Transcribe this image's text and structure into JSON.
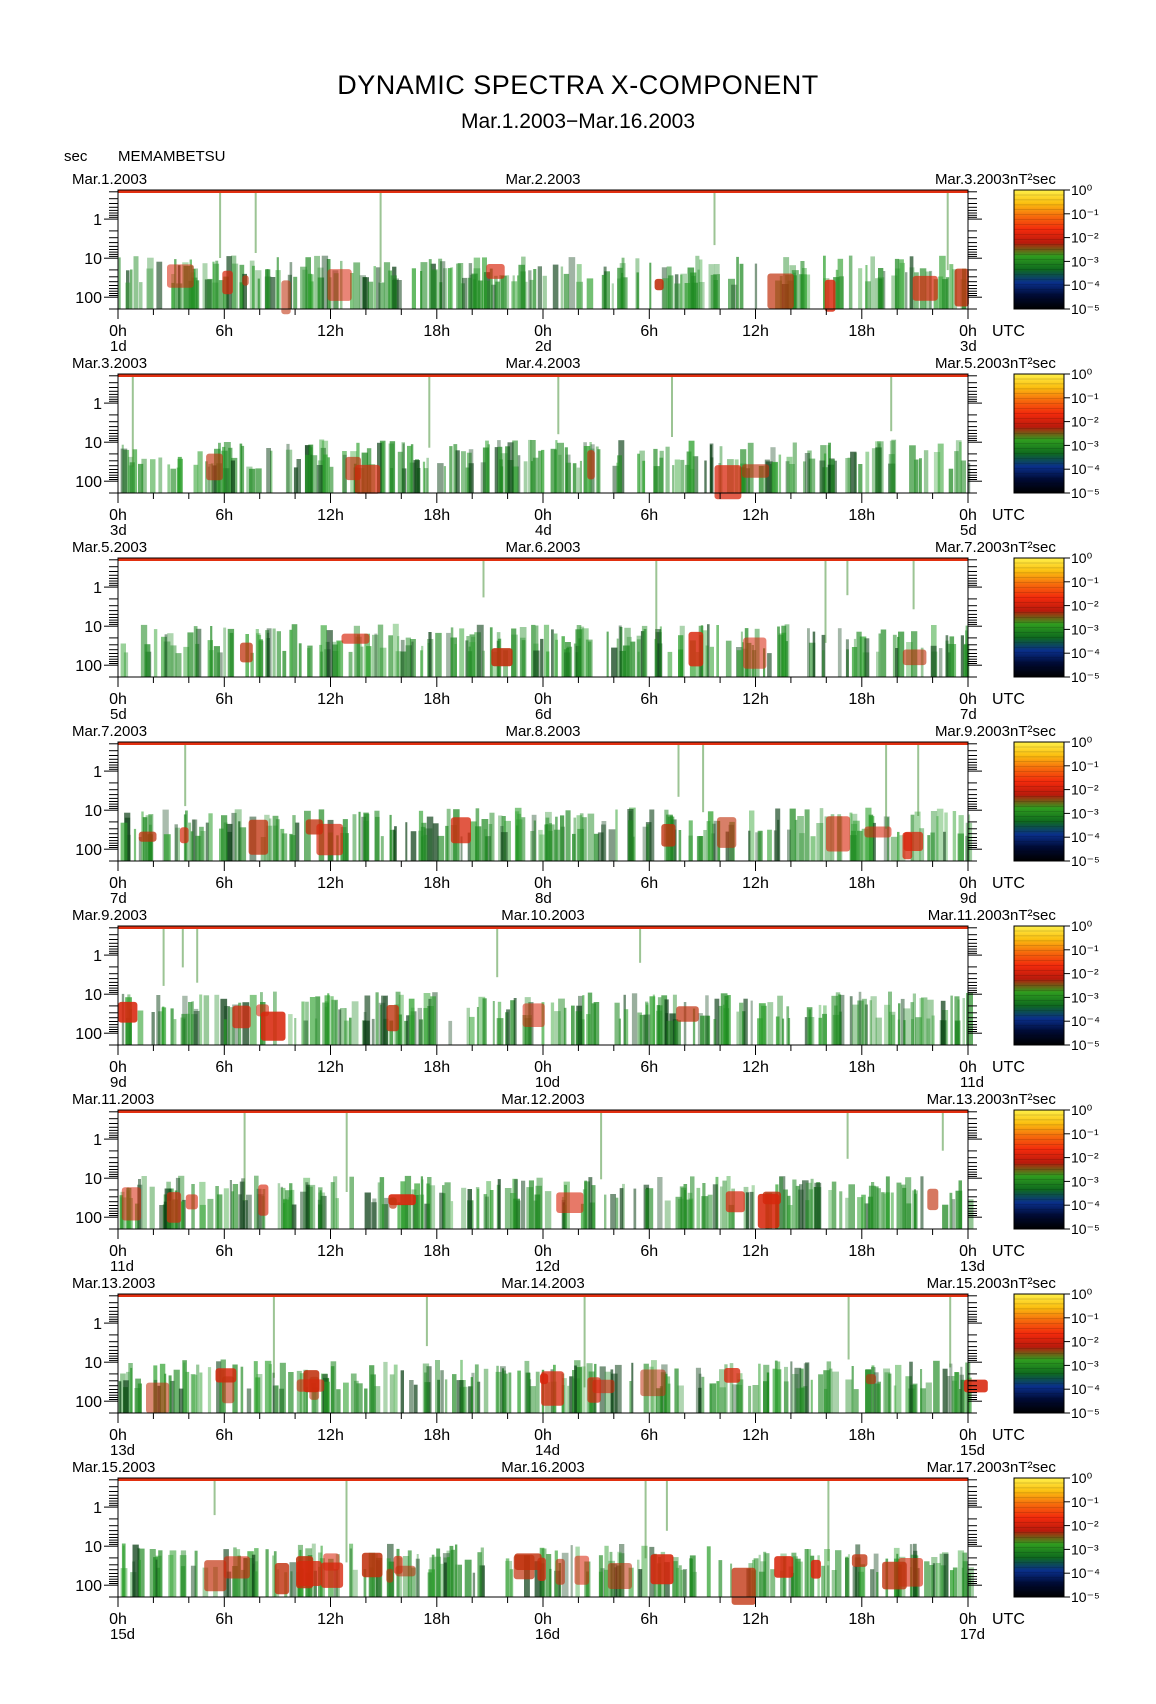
{
  "header": {
    "title": "DYNAMIC SPECTRA X-COMPONENT",
    "subtitle": "Mar.1.2003−Mar.16.2003",
    "y_unit": "sec",
    "station": "MEMAMBETSU"
  },
  "chart_data": {
    "type": "heatmap",
    "y_scale": "log",
    "y_unit": "sec",
    "y_ticks": [
      "1",
      "10",
      "100"
    ],
    "y_tick_values": [
      1,
      10,
      100
    ],
    "ylim": [
      0.18,
      200
    ],
    "x_ticks": [
      "0h",
      "6h",
      "12h",
      "18h",
      "0h",
      "6h",
      "12h",
      "18h",
      "0h"
    ],
    "x_tick_hours": [
      0,
      6,
      12,
      18,
      24,
      30,
      36,
      42,
      48
    ],
    "x_axis_unit": "UTC",
    "colorbar": {
      "unit": "nT²sec",
      "ticks": [
        "10⁰",
        "10⁻¹",
        "10⁻²",
        "10⁻³",
        "10⁻⁴",
        "10⁻⁵"
      ],
      "range": [
        1e-05,
        1
      ],
      "colors": [
        "#000000",
        "#000a33",
        "#0a2f8a",
        "#0f6a1e",
        "#2f9c1f",
        "#b81a0c",
        "#f22a0c",
        "#f66a0c",
        "#fbbf10",
        "#fff04a"
      ]
    },
    "panels": [
      {
        "start": "Mar.1.2003",
        "mid": "Mar.2.2003",
        "end": "Mar.3.2003",
        "day_start": "1d",
        "day_mid": "2d",
        "day_end": "3d"
      },
      {
        "start": "Mar.3.2003",
        "mid": "Mar.4.2003",
        "end": "Mar.5.2003",
        "day_start": "3d",
        "day_mid": "4d",
        "day_end": "5d"
      },
      {
        "start": "Mar.5.2003",
        "mid": "Mar.6.2003",
        "end": "Mar.7.2003",
        "day_start": "5d",
        "day_mid": "6d",
        "day_end": "7d"
      },
      {
        "start": "Mar.7.2003",
        "mid": "Mar.8.2003",
        "end": "Mar.9.2003",
        "day_start": "7d",
        "day_mid": "8d",
        "day_end": "9d"
      },
      {
        "start": "Mar.9.2003",
        "mid": "Mar.10.2003",
        "end": "Mar.11.2003",
        "day_start": "9d",
        "day_mid": "10d",
        "day_end": "11d"
      },
      {
        "start": "Mar.11.2003",
        "mid": "Mar.12.2003",
        "end": "Mar.13.2003",
        "day_start": "11d",
        "day_mid": "12d",
        "day_end": "13d"
      },
      {
        "start": "Mar.13.2003",
        "mid": "Mar.14.2003",
        "end": "Mar.15.2003",
        "day_start": "13d",
        "day_mid": "14d",
        "day_end": "15d"
      },
      {
        "start": "Mar.15.2003",
        "mid": "Mar.16.2003",
        "end": "Mar.17.2003",
        "day_start": "15d",
        "day_mid": "16d",
        "day_end": "17d"
      }
    ]
  }
}
